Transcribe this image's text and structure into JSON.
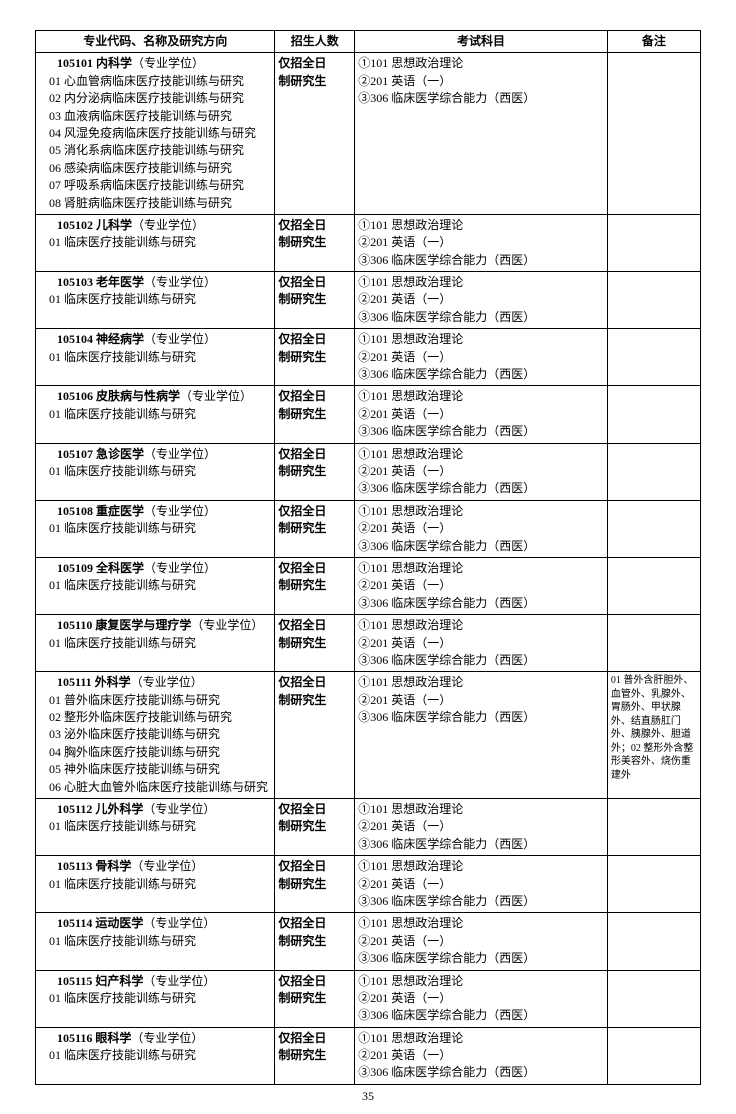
{
  "headers": {
    "c1": "专业代码、名称及研究方向",
    "c2": "招生人数",
    "c3": "考试科目",
    "c4": "备注"
  },
  "rows": [
    {
      "code": "105101",
      "name": "内科学",
      "degree": "（专业学位）",
      "dirs": [
        "01 心血管病临床医疗技能训练与研究",
        "02 内分泌病临床医疗技能训练与研究",
        "03 血液病临床医疗技能训练与研究",
        "04 风湿免疫病临床医疗技能训练与研究",
        "05 消化系病临床医疗技能训练与研究",
        "06 感染病临床医疗技能训练与研究",
        "07 呼吸系病临床医疗技能训练与研究",
        "08 肾脏病临床医疗技能训练与研究"
      ],
      "enroll": [
        "仅招全日",
        "制研究生"
      ],
      "exams": [
        "①101 思想政治理论",
        "②201 英语（一）",
        "③306 临床医学综合能力（西医）"
      ],
      "note": ""
    },
    {
      "code": "105102",
      "name": "儿科学",
      "degree": "（专业学位）",
      "dirs": [
        "01 临床医疗技能训练与研究"
      ],
      "enroll": [
        "仅招全日",
        "制研究生"
      ],
      "exams": [
        "①101 思想政治理论",
        "②201 英语（一）",
        "③306 临床医学综合能力（西医）"
      ],
      "note": ""
    },
    {
      "code": "105103",
      "name": "老年医学",
      "degree": "（专业学位）",
      "dirs": [
        "01 临床医疗技能训练与研究"
      ],
      "enroll": [
        "仅招全日",
        "制研究生"
      ],
      "exams": [
        "①101 思想政治理论",
        "②201 英语（一）",
        "③306 临床医学综合能力（西医）"
      ],
      "note": ""
    },
    {
      "code": "105104",
      "name": "神经病学",
      "degree": "（专业学位）",
      "dirs": [
        "01 临床医疗技能训练与研究"
      ],
      "enroll": [
        "仅招全日",
        "制研究生"
      ],
      "exams": [
        "①101 思想政治理论",
        "②201 英语（一）",
        "③306 临床医学综合能力（西医）"
      ],
      "note": ""
    },
    {
      "code": "105106",
      "name": "皮肤病与性病学",
      "degree": "（专业学位）",
      "dirs": [
        "01 临床医疗技能训练与研究"
      ],
      "enroll": [
        "仅招全日",
        "制研究生"
      ],
      "exams": [
        "①101 思想政治理论",
        "②201 英语（一）",
        "③306 临床医学综合能力（西医）"
      ],
      "note": ""
    },
    {
      "code": "105107",
      "name": "急诊医学",
      "degree": "（专业学位）",
      "dirs": [
        "01 临床医疗技能训练与研究"
      ],
      "enroll": [
        "仅招全日",
        "制研究生"
      ],
      "exams": [
        "①101 思想政治理论",
        "②201 英语（一）",
        "③306 临床医学综合能力（西医）"
      ],
      "note": ""
    },
    {
      "code": "105108",
      "name": "重症医学",
      "degree": "（专业学位）",
      "dirs": [
        "01 临床医疗技能训练与研究"
      ],
      "enroll": [
        "仅招全日",
        "制研究生"
      ],
      "exams": [
        "①101 思想政治理论",
        "②201 英语（一）",
        "③306 临床医学综合能力（西医）"
      ],
      "note": ""
    },
    {
      "code": "105109",
      "name": "全科医学",
      "degree": "（专业学位）",
      "dirs": [
        "01 临床医疗技能训练与研究"
      ],
      "enroll": [
        "仅招全日",
        "制研究生"
      ],
      "exams": [
        "①101 思想政治理论",
        "②201 英语（一）",
        "③306 临床医学综合能力（西医）"
      ],
      "note": ""
    },
    {
      "code": "105110",
      "name": "康复医学与理疗学",
      "degree": "（专业学位）",
      "dirs": [
        "01 临床医疗技能训练与研究"
      ],
      "enroll": [
        "仅招全日",
        "制研究生"
      ],
      "exams": [
        "①101 思想政治理论",
        "②201 英语（一）",
        "③306 临床医学综合能力（西医）"
      ],
      "note": ""
    },
    {
      "code": "105111",
      "name": "外科学",
      "degree": "（专业学位）",
      "dirs": [
        "01 普外临床医疗技能训练与研究",
        "02 整形外临床医疗技能训练与研究",
        "03 泌外临床医疗技能训练与研究",
        "04 胸外临床医疗技能训练与研究",
        "05 神外临床医疗技能训练与研究",
        "06 心脏大血管外临床医疗技能训练与研究"
      ],
      "enroll": [
        "仅招全日",
        "制研究生"
      ],
      "exams": [
        "①101 思想政治理论",
        "②201 英语（一）",
        "③306 临床医学综合能力（西医）"
      ],
      "note": "01 普外含肝胆外、血管外、乳腺外、胃肠外、甲状腺外、结直肠肛门外、胰腺外、胆道外；02 整形外含整形美容外、烧伤重建外"
    },
    {
      "code": "105112",
      "name": "儿外科学",
      "degree": "（专业学位）",
      "dirs": [
        "01 临床医疗技能训练与研究"
      ],
      "enroll": [
        "仅招全日",
        "制研究生"
      ],
      "exams": [
        "①101 思想政治理论",
        "②201 英语（一）",
        "③306 临床医学综合能力（西医）"
      ],
      "note": ""
    },
    {
      "code": "105113",
      "name": "骨科学",
      "degree": "（专业学位）",
      "dirs": [
        "01 临床医疗技能训练与研究"
      ],
      "enroll": [
        "仅招全日",
        "制研究生"
      ],
      "exams": [
        "①101 思想政治理论",
        "②201 英语（一）",
        "③306 临床医学综合能力（西医）"
      ],
      "note": ""
    },
    {
      "code": "105114",
      "name": "运动医学",
      "degree": "（专业学位）",
      "dirs": [
        "01 临床医疗技能训练与研究"
      ],
      "enroll": [
        "仅招全日",
        "制研究生"
      ],
      "exams": [
        "①101 思想政治理论",
        "②201 英语（一）",
        "③306 临床医学综合能力（西医）"
      ],
      "note": ""
    },
    {
      "code": "105115",
      "name": "妇产科学",
      "degree": "（专业学位）",
      "dirs": [
        "01 临床医疗技能训练与研究"
      ],
      "enroll": [
        "仅招全日",
        "制研究生"
      ],
      "exams": [
        "①101 思想政治理论",
        "②201 英语（一）",
        "③306 临床医学综合能力（西医）"
      ],
      "note": ""
    },
    {
      "code": "105116",
      "name": "眼科学",
      "degree": "（专业学位）",
      "dirs": [
        "01 临床医疗技能训练与研究"
      ],
      "enroll": [
        "仅招全日",
        "制研究生"
      ],
      "exams": [
        "①101 思想政治理论",
        "②201 英语（一）",
        "③306 临床医学综合能力（西医）"
      ],
      "note": ""
    }
  ],
  "pagenum": "35"
}
